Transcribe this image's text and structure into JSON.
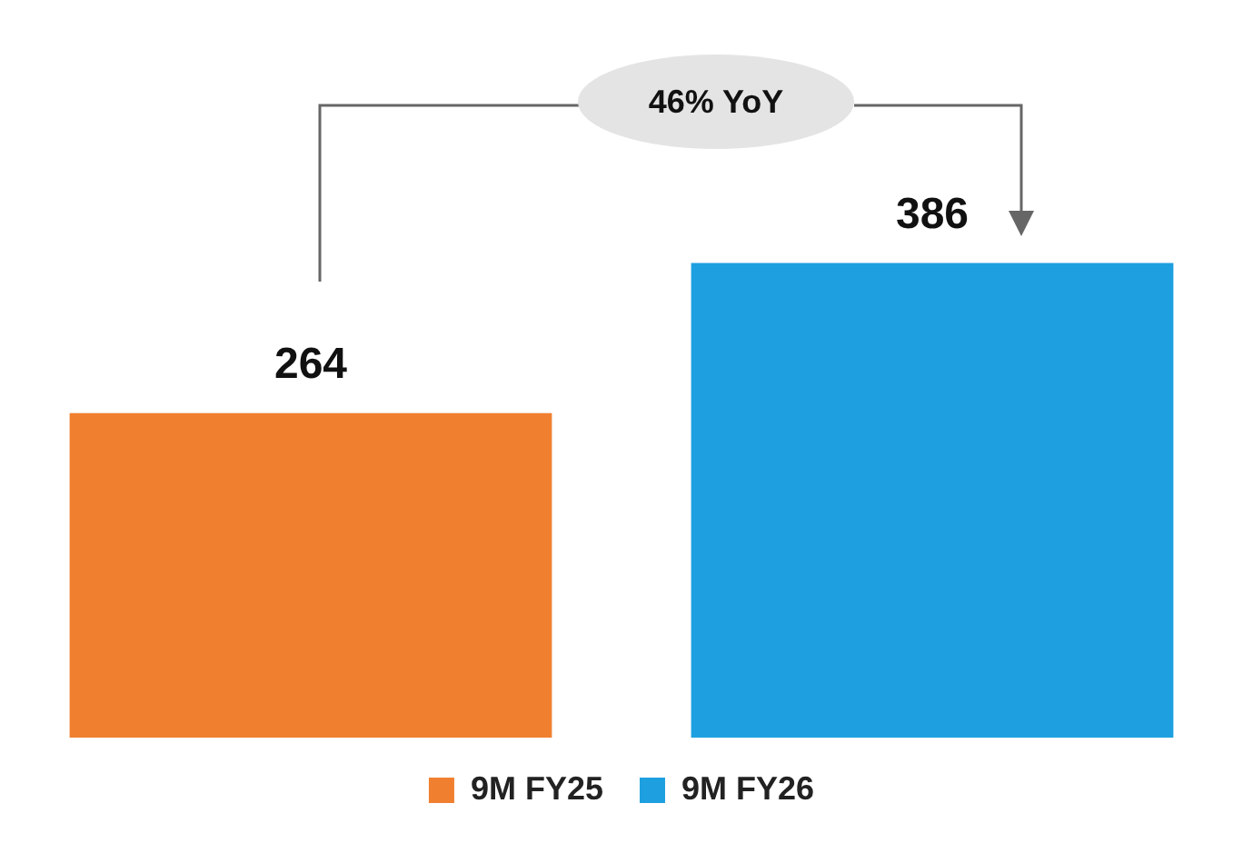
{
  "chart_data": {
    "type": "bar",
    "categories": [
      null,
      null
    ],
    "series": [
      {
        "name": "9M FY25",
        "color": "#f08030",
        "values": [
          264,
          null
        ]
      },
      {
        "name": "9M FY26",
        "color": "#1ea0e0",
        "values": [
          null,
          386
        ]
      }
    ],
    "stacked": true,
    "data_labels": true,
    "legend": "bottom",
    "annotations": [
      "46% YoY"
    ]
  }
}
